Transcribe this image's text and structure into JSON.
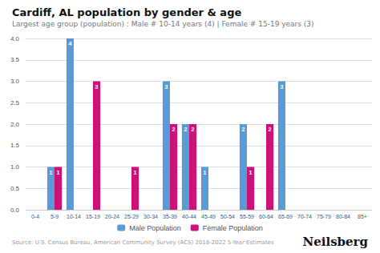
{
  "chart_data": {
    "type": "bar",
    "title": "Cardiff, AL population by gender & age",
    "subtitle": "Largest age group (population) : Male # 10-14 years (4) | Female # 15-19 years (3)",
    "source": "Source: U.S. Census Bureau, American Community Survey (ACS) 2018-2022 5-Year Estimates",
    "annotations": [
      "Neilsberg"
    ],
    "categories": [
      "0-4",
      "5-9",
      "10-14",
      "15-19",
      "20-24",
      "25-29",
      "30-34",
      "35-39",
      "40-44",
      "45-49",
      "50-54",
      "55-59",
      "60-64",
      "65-69",
      "70-74",
      "75-79",
      "80-84",
      "85+"
    ],
    "series": [
      {
        "name": "Male Population",
        "color": "#5B9BD5",
        "values": [
          0,
          1,
          4,
          0,
          0,
          0,
          0,
          3,
          2,
          1,
          0,
          2,
          0,
          3,
          0,
          0,
          0,
          0
        ]
      },
      {
        "name": "Female Population",
        "color": "#CC1177",
        "values": [
          0,
          1,
          0,
          3,
          0,
          1,
          0,
          2,
          2,
          0,
          0,
          1,
          2,
          0,
          0,
          0,
          0,
          0
        ]
      }
    ],
    "ylim": [
      0,
      4
    ],
    "yticks": [
      {
        "value": 0,
        "label": "0.0"
      },
      {
        "value": 0.5,
        "label": "0.5"
      },
      {
        "value": 1,
        "label": "1.0"
      },
      {
        "value": 1.5,
        "label": "1.5"
      },
      {
        "value": 2,
        "label": "2.0"
      },
      {
        "value": 2.5,
        "label": "2.5"
      },
      {
        "value": 3,
        "label": "3.0"
      },
      {
        "value": 3.5,
        "label": "3.5"
      },
      {
        "value": 4,
        "label": "4.0"
      }
    ],
    "grid": true,
    "legend": "bottom",
    "data_labels": true
  }
}
